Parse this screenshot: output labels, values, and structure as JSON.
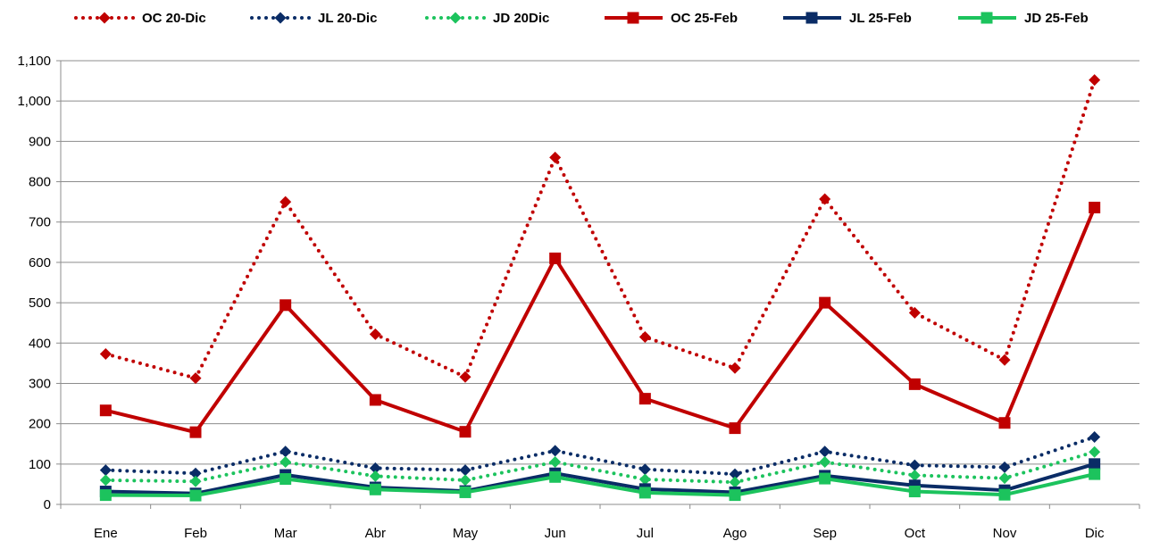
{
  "chart_data": {
    "type": "line",
    "title": "",
    "xlabel": "",
    "ylabel": "",
    "categories": [
      "Ene",
      "Feb",
      "Mar",
      "Abr",
      "May",
      "Jun",
      "Jul",
      "Ago",
      "Sep",
      "Oct",
      "Nov",
      "Dic"
    ],
    "ylim": [
      0,
      1100
    ],
    "yticks": [
      "0",
      "100",
      "200",
      "300",
      "400",
      "500",
      "600",
      "700",
      "800",
      "900",
      "1,000",
      "1,100"
    ],
    "grid": "horizontal",
    "legend_position": "top",
    "series": [
      {
        "name": "OC 20-Dic",
        "style": "dotted",
        "marker": "diamond",
        "color": "#C00000",
        "values": [
          373,
          313,
          750,
          422,
          316,
          860,
          415,
          338,
          757,
          475,
          358,
          1052
        ]
      },
      {
        "name": "JL 20-Dic",
        "style": "dotted",
        "marker": "diamond",
        "color": "#0A2C66",
        "values": [
          85,
          77,
          131,
          90,
          85,
          133,
          87,
          75,
          131,
          97,
          92,
          167
        ]
      },
      {
        "name": "JD 20Dic",
        "style": "dotted",
        "marker": "diamond",
        "color": "#1CC35D",
        "values": [
          60,
          57,
          105,
          70,
          60,
          105,
          62,
          55,
          105,
          72,
          65,
          130
        ]
      },
      {
        "name": "OC 25-Feb",
        "style": "solid",
        "marker": "square",
        "color": "#C00000",
        "values": [
          233,
          179,
          494,
          259,
          180,
          610,
          262,
          189,
          500,
          298,
          202,
          736
        ]
      },
      {
        "name": "JL 25-Feb",
        "style": "solid",
        "marker": "square",
        "color": "#0A2C66",
        "values": [
          32,
          27,
          73,
          42,
          33,
          77,
          38,
          30,
          71,
          47,
          35,
          100
        ]
      },
      {
        "name": "JD 25-Feb",
        "style": "solid",
        "marker": "square",
        "color": "#1CC35D",
        "values": [
          23,
          22,
          63,
          37,
          30,
          68,
          29,
          23,
          64,
          32,
          24,
          75
        ]
      }
    ]
  }
}
